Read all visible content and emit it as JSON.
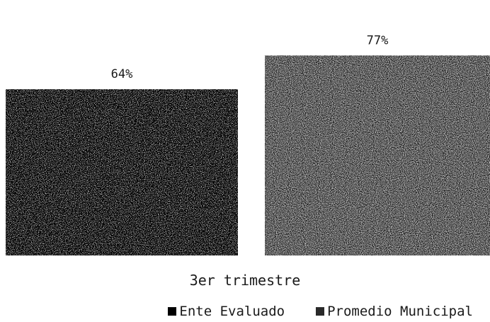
{
  "chart_data": {
    "type": "bar",
    "categories": [
      "3er trimestre"
    ],
    "series": [
      {
        "name": "Ente Evaluado",
        "values": [
          64
        ],
        "label": "64%",
        "color": "#000000"
      },
      {
        "name": "Promedio Municipal",
        "values": [
          77
        ],
        "label": "77%",
        "color": "#111111"
      }
    ],
    "ylim": [
      0,
      100
    ],
    "grid": false,
    "legend_position": "bottom-right"
  }
}
